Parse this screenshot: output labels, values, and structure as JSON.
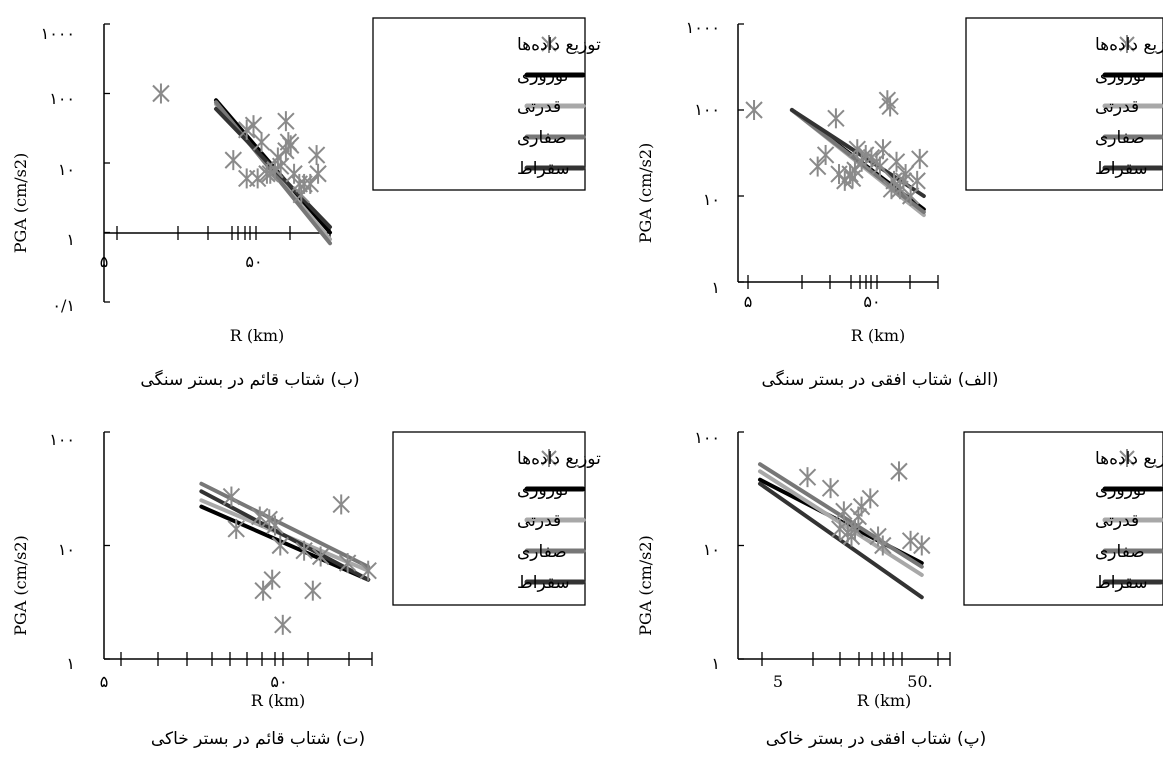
{
  "colors": {
    "marker": "#8a8a8a",
    "axis": "#000000",
    "noroozi": "#000000",
    "ghodrati": "#a8a8a8",
    "safari": "#777777",
    "soghrat": "#333333"
  },
  "chart_data": [
    {
      "id": "alef",
      "type": "scatter",
      "title": "(الف) شتاب افقی در بستر سنگی",
      "xlabel": "R (km)",
      "ylabel": "PGA (cm/s2)",
      "x_scale": "log",
      "y_scale": "log",
      "xlim": [
        5,
        100
      ],
      "ylim": [
        1,
        1000
      ],
      "x_tick_labels": [
        {
          "value": 5,
          "label": "۵"
        },
        {
          "value": 50,
          "label": "۵۰"
        }
      ],
      "y_tick_labels": [
        {
          "value": 1,
          "label": "۱"
        },
        {
          "value": 10,
          "label": "۱۰"
        },
        {
          "value": 100,
          "label": "۱۰۰"
        },
        {
          "value": 1000,
          "label": "۱۰۰۰"
        }
      ],
      "legend": [
        "توزیع داده‌ها",
        "نوروزی",
        "قدرتی",
        "صفاری",
        "سقراط"
      ],
      "legend_position": "top-right",
      "scatter": [
        [
          5.5,
          100
        ],
        [
          15,
          22
        ],
        [
          17,
          30
        ],
        [
          20,
          80
        ],
        [
          21,
          18
        ],
        [
          23,
          15
        ],
        [
          25,
          18
        ],
        [
          26,
          16
        ],
        [
          27,
          20
        ],
        [
          28,
          35
        ],
        [
          30,
          25
        ],
        [
          32,
          30
        ],
        [
          35,
          28
        ],
        [
          38,
          25
        ],
        [
          40,
          22
        ],
        [
          42,
          35
        ],
        [
          45,
          130
        ],
        [
          47,
          110
        ],
        [
          48,
          12
        ],
        [
          50,
          15
        ],
        [
          52,
          25
        ],
        [
          55,
          12
        ],
        [
          58,
          15
        ],
        [
          60,
          18
        ],
        [
          65,
          10
        ],
        [
          72,
          15
        ],
        [
          75,
          27
        ]
      ],
      "series": [
        {
          "name": "نوروزی",
          "x": [
            10,
            80
          ],
          "y": [
            100,
            7
          ]
        },
        {
          "name": "قدرتی",
          "x": [
            10,
            80
          ],
          "y": [
            100,
            6
          ]
        },
        {
          "name": "صفاری",
          "x": [
            10,
            80
          ],
          "y": [
            100,
            6.5
          ]
        },
        {
          "name": "سقراط",
          "x": [
            10,
            80
          ],
          "y": [
            100,
            10
          ]
        }
      ]
    },
    {
      "id": "be",
      "type": "scatter",
      "title": "(ب) شتاب قائم در بستر سنگی",
      "xlabel": "R (km)",
      "ylabel": "PGA (cm/s2)",
      "x_scale": "log",
      "y_scale": "log",
      "xlim": [
        5,
        100
      ],
      "ylim": [
        0.1,
        1000
      ],
      "x_tick_labels": [
        {
          "value": 5,
          "label": "۵"
        },
        {
          "value": 50,
          "label": "۵۰"
        }
      ],
      "y_tick_labels": [
        {
          "value": 0.1,
          "label": "۰/۱"
        },
        {
          "value": 1,
          "label": "۱"
        },
        {
          "value": 10,
          "label": "۱۰"
        },
        {
          "value": 100,
          "label": "۱۰۰"
        },
        {
          "value": 1000,
          "label": "۱۰۰۰"
        }
      ],
      "legend": [
        "توزیع داده‌ها",
        "نوروزی",
        "قدرتی",
        "صفاری",
        "سقراط"
      ],
      "legend_position": "top-right",
      "scatter": [
        [
          6,
          100
        ],
        [
          20,
          11
        ],
        [
          25,
          6
        ],
        [
          25,
          30
        ],
        [
          28,
          35
        ],
        [
          30,
          6
        ],
        [
          32,
          20
        ],
        [
          35,
          7
        ],
        [
          37,
          7
        ],
        [
          40,
          8
        ],
        [
          42,
          12
        ],
        [
          44,
          9
        ],
        [
          48,
          40
        ],
        [
          48,
          15
        ],
        [
          50,
          20
        ],
        [
          52,
          18
        ],
        [
          55,
          7
        ],
        [
          60,
          5
        ],
        [
          62,
          3.5
        ],
        [
          65,
          5
        ],
        [
          72,
          5
        ],
        [
          80,
          13
        ],
        [
          82,
          7
        ]
      ],
      "series": [
        {
          "name": "نوروزی",
          "x": [
            15,
            100
          ],
          "y": [
            80,
            1
          ]
        },
        {
          "name": "قدرتی",
          "x": [
            15,
            100
          ],
          "y": [
            70,
            0.8
          ]
        },
        {
          "name": "صفاری",
          "x": [
            15,
            100
          ],
          "y": [
            75,
            0.7
          ]
        },
        {
          "name": "سقراط",
          "x": [
            15,
            100
          ],
          "y": [
            60,
            1.2
          ]
        }
      ]
    },
    {
      "id": "pe",
      "type": "scatter",
      "title": "(پ) شتاب افقی در بستر خاکی",
      "xlabel": "R (km)",
      "ylabel": "PGA (cm/s2)",
      "x_scale": "log",
      "y_scale": "log",
      "xlim": [
        5,
        80
      ],
      "ylim": [
        1,
        100
      ],
      "x_tick_labels": [
        {
          "value": 5,
          "label": "5"
        },
        {
          "value": 50,
          "label": "50."
        }
      ],
      "y_tick_labels": [
        {
          "value": 1,
          "label": "۱"
        },
        {
          "value": 10,
          "label": "۱۰"
        },
        {
          "value": 100,
          "label": "۱۰۰"
        }
      ],
      "legend": [
        "توزیع داده‌ها",
        "نوروزی",
        "قدرتی",
        "صفاری",
        "سقراط"
      ],
      "legend_position": "top-right",
      "scatter": [
        [
          10,
          40
        ],
        [
          14,
          32
        ],
        [
          16,
          14
        ],
        [
          17,
          20
        ],
        [
          18,
          13
        ],
        [
          19,
          12
        ],
        [
          20,
          14
        ],
        [
          21,
          18
        ],
        [
          22,
          22
        ],
        [
          25,
          26
        ],
        [
          28,
          12
        ],
        [
          30,
          10
        ],
        [
          38,
          45
        ],
        [
          45,
          11
        ],
        [
          53,
          10
        ]
      ],
      "series": [
        {
          "name": "نوروزی",
          "x": [
            5,
            53
          ],
          "y": [
            38,
            7
          ]
        },
        {
          "name": "قدرتی",
          "x": [
            5,
            53
          ],
          "y": [
            45,
            5.5
          ]
        },
        {
          "name": "صفاری",
          "x": [
            5,
            53
          ],
          "y": [
            52,
            6.5
          ]
        },
        {
          "name": "سقراط",
          "x": [
            5,
            53
          ],
          "y": [
            35,
            3.5
          ]
        }
      ]
    },
    {
      "id": "te",
      "type": "scatter",
      "title": "(ت) شتاب قائم در بستر خاکی",
      "xlabel": "R (km)",
      "ylabel": "PGA (cm/s2)",
      "x_scale": "log",
      "y_scale": "log",
      "xlim": [
        5,
        100
      ],
      "ylim": [
        1,
        100
      ],
      "x_tick_labels": [
        {
          "value": 5,
          "label": "۵"
        },
        {
          "value": 50,
          "label": "۵۰"
        }
      ],
      "y_tick_labels": [
        {
          "value": 1,
          "label": "۱"
        },
        {
          "value": 10,
          "label": "۱۰"
        },
        {
          "value": 100,
          "label": "۱۰۰"
        }
      ],
      "legend": [
        "توزیع داده‌ها",
        "نوروزی",
        "قدرتی",
        "صفاری",
        "سقراط"
      ],
      "legend_position": "top-right",
      "scatter": [
        [
          15,
          27
        ],
        [
          16,
          14
        ],
        [
          22,
          18
        ],
        [
          23,
          4
        ],
        [
          25,
          17
        ],
        [
          26,
          5
        ],
        [
          27,
          15
        ],
        [
          29,
          10
        ],
        [
          30,
          2
        ],
        [
          40,
          9
        ],
        [
          45,
          4
        ],
        [
          50,
          8
        ],
        [
          66,
          23
        ],
        [
          72,
          7
        ],
        [
          95,
          6
        ]
      ],
      "series": [
        {
          "name": "نوروزی",
          "x": [
            10,
            95
          ],
          "y": [
            22,
            5
          ]
        },
        {
          "name": "قدرتی",
          "x": [
            10,
            95
          ],
          "y": [
            25,
            6
          ]
        },
        {
          "name": "صفاری",
          "x": [
            10,
            95
          ],
          "y": [
            35,
            6.5
          ]
        },
        {
          "name": "سقراط",
          "x": [
            10,
            95
          ],
          "y": [
            30,
            5
          ]
        }
      ]
    }
  ]
}
